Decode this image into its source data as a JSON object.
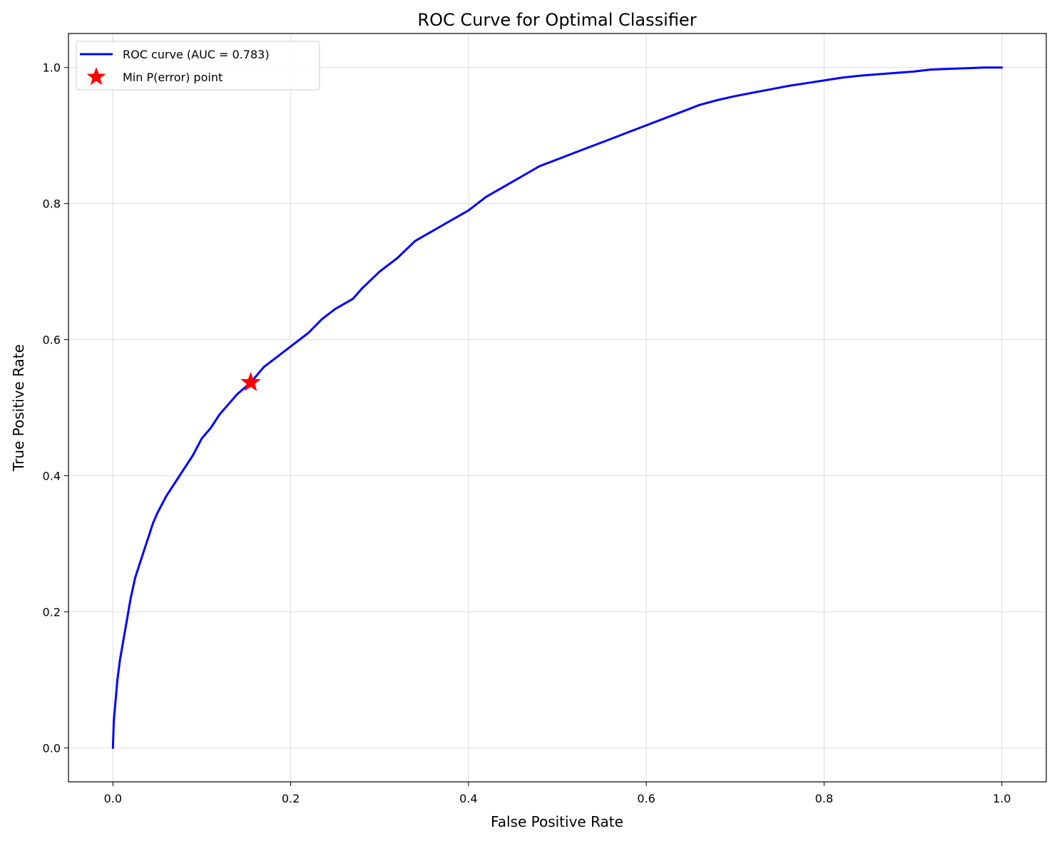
{
  "colors": {
    "curve": "#0000ff",
    "marker": "#ff0000",
    "grid": "#dddddd",
    "axis": "#000000"
  },
  "chart_data": {
    "type": "line",
    "title": "ROC Curve for Optimal Classifier",
    "xlabel": "False Positive Rate",
    "ylabel": "True Positive Rate",
    "xlim": [
      -0.05,
      1.05
    ],
    "ylim": [
      -0.05,
      1.05
    ],
    "grid": true,
    "legend_position": "top-left",
    "xticks": [
      0.0,
      0.2,
      0.4,
      0.6,
      0.8,
      1.0
    ],
    "yticks": [
      0.0,
      0.2,
      0.4,
      0.6,
      0.8,
      1.0
    ],
    "xtick_labels": [
      "0.0",
      "0.2",
      "0.4",
      "0.6",
      "0.8",
      "1.0"
    ],
    "ytick_labels": [
      "0.0",
      "0.2",
      "0.4",
      "0.6",
      "0.8",
      "1.0"
    ],
    "series": [
      {
        "name": "ROC curve (AUC = 0.783)",
        "kind": "line",
        "x": [
          0.0,
          0.001,
          0.003,
          0.005,
          0.008,
          0.012,
          0.016,
          0.02,
          0.025,
          0.03,
          0.035,
          0.04,
          0.045,
          0.05,
          0.06,
          0.07,
          0.08,
          0.09,
          0.1,
          0.11,
          0.12,
          0.13,
          0.14,
          0.155,
          0.17,
          0.18,
          0.2,
          0.22,
          0.235,
          0.25,
          0.27,
          0.28,
          0.3,
          0.32,
          0.34,
          0.36,
          0.38,
          0.4,
          0.42,
          0.44,
          0.46,
          0.48,
          0.5,
          0.52,
          0.54,
          0.56,
          0.58,
          0.6,
          0.62,
          0.64,
          0.66,
          0.68,
          0.7,
          0.72,
          0.74,
          0.76,
          0.78,
          0.8,
          0.82,
          0.84,
          0.86,
          0.88,
          0.9,
          0.92,
          0.94,
          0.96,
          0.98,
          1.0
        ],
        "y": [
          0.0,
          0.04,
          0.07,
          0.1,
          0.13,
          0.16,
          0.19,
          0.22,
          0.25,
          0.27,
          0.29,
          0.31,
          0.33,
          0.345,
          0.37,
          0.39,
          0.41,
          0.43,
          0.455,
          0.47,
          0.49,
          0.505,
          0.52,
          0.537,
          0.56,
          0.57,
          0.59,
          0.61,
          0.63,
          0.645,
          0.66,
          0.675,
          0.7,
          0.72,
          0.745,
          0.76,
          0.775,
          0.79,
          0.81,
          0.825,
          0.84,
          0.855,
          0.865,
          0.875,
          0.885,
          0.895,
          0.905,
          0.915,
          0.925,
          0.935,
          0.945,
          0.952,
          0.958,
          0.963,
          0.968,
          0.973,
          0.977,
          0.981,
          0.985,
          0.988,
          0.99,
          0.992,
          0.994,
          0.997,
          0.998,
          0.999,
          1.0,
          1.0
        ]
      },
      {
        "name": "Min P(error) point",
        "kind": "marker",
        "marker": "star",
        "x": [
          0.155
        ],
        "y": [
          0.537
        ]
      }
    ]
  }
}
